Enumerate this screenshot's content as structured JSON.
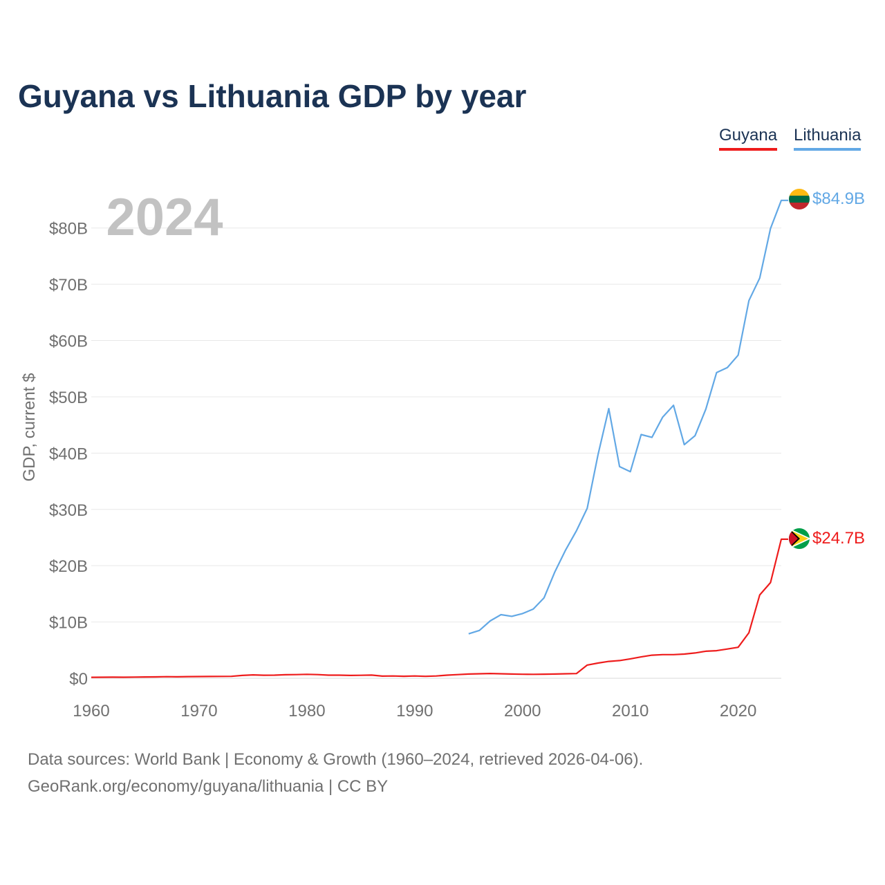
{
  "title": "Guyana vs Lithuania GDP by year",
  "legend": [
    {
      "name": "Guyana",
      "color": "#ee1c1c"
    },
    {
      "name": "Lithuania",
      "color": "#62a8e5"
    }
  ],
  "year_label": "2024",
  "footer": {
    "source": "Data sources: World Bank | Economy & Growth (1960–2024, retrieved 2026-04-06).",
    "credit": "GeoRank.org/economy/guyana/lithuania | CC BY"
  },
  "chart_data": {
    "type": "line",
    "title": "Guyana vs Lithuania GDP by year",
    "xlabel": "",
    "ylabel": "GDP, current $",
    "xlim": [
      1960,
      2024
    ],
    "ylim": [
      0,
      85
    ],
    "unit": "billion USD",
    "x_ticks": [
      1960,
      1970,
      1980,
      1990,
      2000,
      2010,
      2020
    ],
    "x_tick_labels": [
      "1960",
      "1970",
      "1980",
      "1990",
      "2000",
      "2010",
      "2020"
    ],
    "y_ticks": [
      0,
      10,
      20,
      30,
      40,
      50,
      60,
      70,
      80
    ],
    "y_tick_labels": [
      "$0",
      "$10B",
      "$20B",
      "$30B",
      "$40B",
      "$50B",
      "$60B",
      "$70B",
      "$80B"
    ],
    "grid": true,
    "legend_position": "top-right",
    "series": [
      {
        "name": "Guyana",
        "color": "#ee1c1c",
        "end_label": "$24.7B",
        "flag": "guyana-flag",
        "x": [
          1960,
          1961,
          1962,
          1963,
          1964,
          1965,
          1966,
          1967,
          1968,
          1969,
          1970,
          1971,
          1972,
          1973,
          1974,
          1975,
          1976,
          1977,
          1978,
          1979,
          1980,
          1981,
          1982,
          1983,
          1984,
          1985,
          1986,
          1987,
          1988,
          1989,
          1990,
          1991,
          1992,
          1993,
          1994,
          1995,
          1996,
          1997,
          1998,
          1999,
          2000,
          2001,
          2002,
          2003,
          2004,
          2005,
          2006,
          2007,
          2008,
          2009,
          2010,
          2011,
          2012,
          2013,
          2014,
          2015,
          2016,
          2017,
          2018,
          2019,
          2020,
          2021,
          2022,
          2023,
          2024
        ],
        "values": [
          0.17,
          0.19,
          0.2,
          0.19,
          0.21,
          0.23,
          0.25,
          0.28,
          0.26,
          0.29,
          0.31,
          0.32,
          0.33,
          0.35,
          0.5,
          0.6,
          0.54,
          0.55,
          0.63,
          0.65,
          0.7,
          0.65,
          0.55,
          0.55,
          0.5,
          0.53,
          0.56,
          0.38,
          0.41,
          0.36,
          0.4,
          0.35,
          0.4,
          0.55,
          0.65,
          0.75,
          0.8,
          0.85,
          0.8,
          0.75,
          0.71,
          0.7,
          0.72,
          0.75,
          0.8,
          0.83,
          2.35,
          2.7,
          3.0,
          3.15,
          3.45,
          3.8,
          4.1,
          4.2,
          4.2,
          4.3,
          4.5,
          4.8,
          4.9,
          5.2,
          5.5,
          8.1,
          14.8,
          17.0,
          24.7
        ]
      },
      {
        "name": "Lithuania",
        "color": "#62a8e5",
        "end_label": "$84.9B",
        "flag": "lithuania-flag",
        "x": [
          1995,
          1996,
          1997,
          1998,
          1999,
          2000,
          2001,
          2002,
          2003,
          2004,
          2005,
          2006,
          2007,
          2008,
          2009,
          2010,
          2011,
          2012,
          2013,
          2014,
          2015,
          2016,
          2017,
          2018,
          2019,
          2020,
          2021,
          2022,
          2023,
          2024
        ],
        "values": [
          7.9,
          8.5,
          10.2,
          11.3,
          11.0,
          11.5,
          12.3,
          14.3,
          18.9,
          22.8,
          26.2,
          30.2,
          39.7,
          47.9,
          37.6,
          36.7,
          43.3,
          42.8,
          46.4,
          48.5,
          41.5,
          43.1,
          47.8,
          54.3,
          55.2,
          57.4,
          67.1,
          71.1,
          79.9,
          84.9
        ]
      }
    ]
  }
}
